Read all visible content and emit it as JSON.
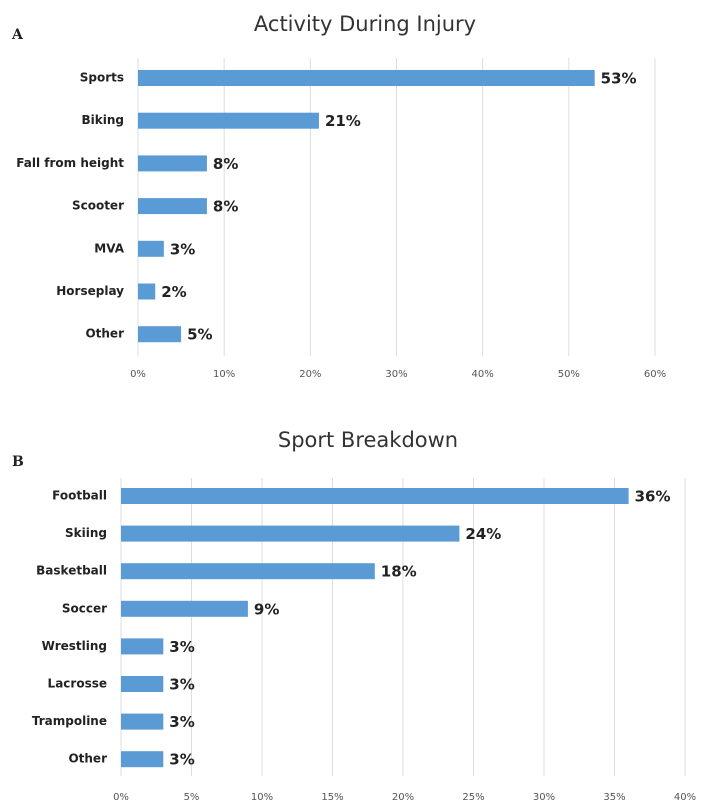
{
  "chart_data": [
    {
      "type": "bar",
      "label": "A",
      "title": "Activity During Injury",
      "orientation": "horizontal",
      "color": "#5b9bd5",
      "grid": true,
      "categories": [
        "Sports",
        "Biking",
        "Fall from height",
        "Scooter",
        "MVA",
        "Horseplay",
        "Other"
      ],
      "values": [
        53,
        21,
        8,
        8,
        3,
        2,
        5
      ],
      "value_labels": [
        "53%",
        "21%",
        "8%",
        "8%",
        "3%",
        "2%",
        "5%"
      ],
      "xlim": [
        0,
        60
      ],
      "xticks": [
        {
          "value": 0,
          "label": "0%"
        },
        {
          "value": 10,
          "label": "10%"
        },
        {
          "value": 20,
          "label": "20%"
        },
        {
          "value": 30,
          "label": "30%"
        },
        {
          "value": 40,
          "label": "40%"
        },
        {
          "value": 50,
          "label": "50%"
        },
        {
          "value": 60,
          "label": "60%"
        }
      ]
    },
    {
      "type": "bar",
      "label": "B",
      "title": "Sport Breakdown",
      "orientation": "horizontal",
      "color": "#5b9bd5",
      "grid": true,
      "categories": [
        "Football",
        "Skiing",
        "Basketball",
        "Soccer",
        "Wrestling",
        "Lacrosse",
        "Trampoline",
        "Other"
      ],
      "values": [
        36,
        24,
        18,
        9,
        3,
        3,
        3,
        3
      ],
      "value_labels": [
        "36%",
        "24%",
        "18%",
        "9%",
        "3%",
        "3%",
        "3%",
        "3%"
      ],
      "xlim": [
        0,
        40
      ],
      "xticks": [
        {
          "value": 0,
          "label": "0%"
        },
        {
          "value": 5,
          "label": "5%"
        },
        {
          "value": 10,
          "label": "10%"
        },
        {
          "value": 15,
          "label": "15%"
        },
        {
          "value": 20,
          "label": "20%"
        },
        {
          "value": 25,
          "label": "25%"
        },
        {
          "value": 30,
          "label": "30%"
        },
        {
          "value": 35,
          "label": "35%"
        },
        {
          "value": 40,
          "label": "40%"
        }
      ]
    }
  ]
}
